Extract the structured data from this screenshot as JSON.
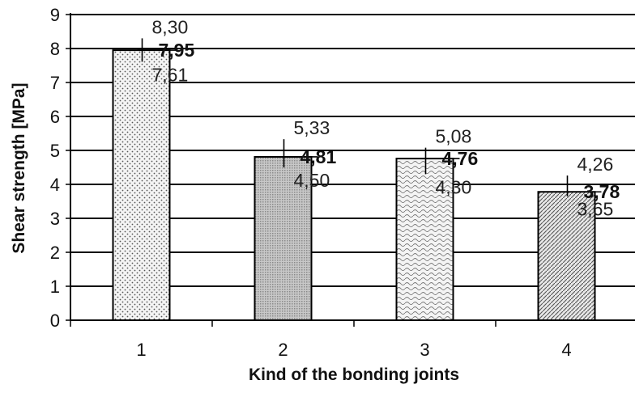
{
  "chart_data": {
    "type": "bar",
    "xlabel": "Kind of the bonding joints",
    "ylabel": "Shear strength [MPa]",
    "ylim": [
      0,
      9
    ],
    "yticks": [
      0,
      1,
      2,
      3,
      4,
      5,
      6,
      7,
      8,
      9
    ],
    "grid": "horizontal",
    "categories": [
      "1",
      "2",
      "3",
      "4"
    ],
    "values": [
      7.95,
      4.81,
      4.76,
      3.78
    ],
    "max_values": [
      8.3,
      5.33,
      5.08,
      4.26
    ],
    "min_values": [
      7.61,
      4.5,
      4.3,
      3.65
    ],
    "value_labels": [
      "7,95",
      "4,81",
      "4,76",
      "3,78"
    ],
    "max_labels": [
      "8,30",
      "5,33",
      "5,08",
      "4,26"
    ],
    "min_labels": [
      "7,61",
      "4,50",
      "4,30",
      "3,65"
    ],
    "bar_patterns": [
      "dots",
      "fine-grid",
      "waves",
      "diagonal-lines"
    ],
    "colors": {
      "bar_outline": "#000000",
      "grid": "#000000",
      "pattern": "#555555",
      "bar_fill": "#f0f0f0"
    }
  }
}
